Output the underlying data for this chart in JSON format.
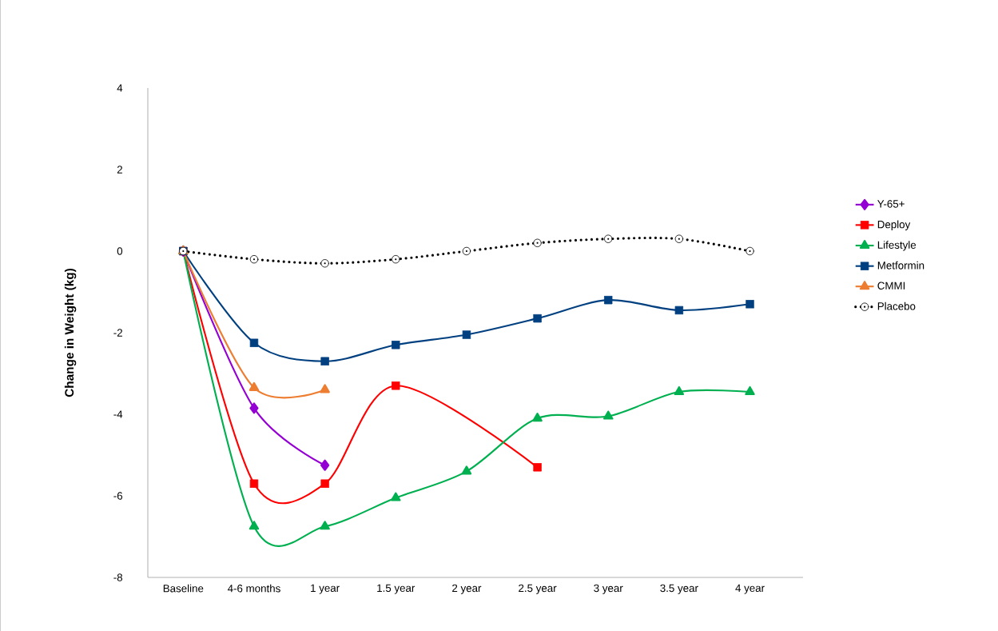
{
  "chart_data": {
    "type": "line",
    "ylabel": "Change in Weight (kg)",
    "categories": [
      "Baseline",
      "4-6 months",
      "1 year",
      "1.5 year",
      "2 year",
      "2.5 year",
      "3 year",
      "3.5 year",
      "4 year"
    ],
    "ylim": [
      -8,
      4
    ],
    "yticks": [
      -8,
      -6,
      -4,
      -2,
      0,
      2,
      4
    ],
    "grid": false,
    "legend": "right",
    "series": [
      {
        "name": "Y-65+",
        "color": "#9400d3",
        "marker": "diamond",
        "line_style": "solid",
        "values": [
          0,
          -3.85,
          -5.25,
          null,
          null,
          null,
          null,
          null,
          null
        ]
      },
      {
        "name": "Deploy",
        "color": "#ff0000",
        "marker": "square",
        "line_style": "solid",
        "values": [
          0,
          -5.7,
          -5.7,
          -3.3,
          null,
          -5.3,
          null,
          null,
          null
        ]
      },
      {
        "name": "Lifestyle",
        "color": "#00b050",
        "marker": "triangle",
        "line_style": "solid",
        "values": [
          0,
          -6.75,
          -6.75,
          -6.05,
          -5.4,
          -4.1,
          -4.05,
          -3.45,
          -3.45
        ]
      },
      {
        "name": "Metformin",
        "color": "#004080",
        "marker": "square",
        "line_style": "solid",
        "values": [
          0,
          -2.25,
          -2.7,
          -2.3,
          -2.05,
          -1.65,
          -1.2,
          -1.45,
          -1.3
        ]
      },
      {
        "name": "CMMI",
        "color": "#ed7d31",
        "marker": "triangle",
        "line_style": "solid",
        "values": [
          0,
          -3.35,
          -3.4,
          null,
          null,
          null,
          null,
          null,
          null
        ]
      },
      {
        "name": "Placebo",
        "color": "#000000",
        "marker": "circle",
        "line_style": "dotted",
        "values": [
          0,
          -0.2,
          -0.3,
          -0.2,
          0,
          0.2,
          0.3,
          0.3,
          0
        ]
      }
    ]
  }
}
